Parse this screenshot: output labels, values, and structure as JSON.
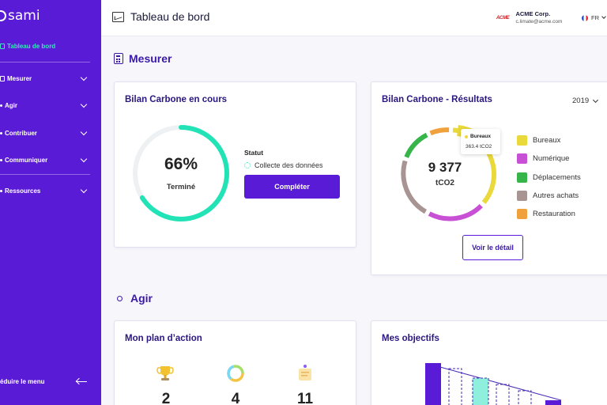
{
  "sidebar": {
    "logo": "sami",
    "active_item": "Tableau de bord",
    "items": [
      {
        "label": "Mesurer"
      },
      {
        "label": "Agir"
      },
      {
        "label": "Contribuer"
      },
      {
        "label": "Communiquer"
      },
      {
        "label": "Ressources"
      }
    ],
    "reduce_label": "éduire le menu"
  },
  "header": {
    "title": "Tableau de bord",
    "org_logo": "ACME",
    "org_name": "ACME Corp.",
    "org_email": "c.limate@acme.com",
    "language": "FR"
  },
  "sections": {
    "mesurer": "Mesurer",
    "agir": "Agir"
  },
  "bilan_en_cours": {
    "title": "Bilan Carbone en cours",
    "percent": "66%",
    "progress": 0.66,
    "percent_label": "Terminé",
    "statut_label": "Statut",
    "statut_value": "Collecte des données",
    "button": "Compléter",
    "colors": {
      "progress": "#22e3b6",
      "track": "#eef1f3"
    }
  },
  "bilan_resultats": {
    "title": "Bilan Carbone - Résultats",
    "year": "2019",
    "total": "9 377",
    "unit": "tCO2",
    "tooltip": {
      "name": "Bureaux",
      "value": "363.4 tCO2"
    },
    "button": "Voir le détail",
    "legend": [
      {
        "label": "Bureaux",
        "color": "#ead93a"
      },
      {
        "label": "Numérique",
        "color": "#c850d4"
      },
      {
        "label": "Déplacements",
        "color": "#36b54a"
      },
      {
        "label": "Autres achats",
        "color": "#a89493"
      },
      {
        "label": "Restauration",
        "color": "#f1a13b"
      }
    ]
  },
  "plan_action": {
    "title": "Mon plan d’action",
    "stats": [
      {
        "value": "2",
        "icon": "trophy-icon"
      },
      {
        "value": "4",
        "icon": "ring-chart-icon"
      },
      {
        "value": "11",
        "icon": "notepad-icon"
      }
    ]
  },
  "objectifs": {
    "title": "Mes objectifs"
  }
}
